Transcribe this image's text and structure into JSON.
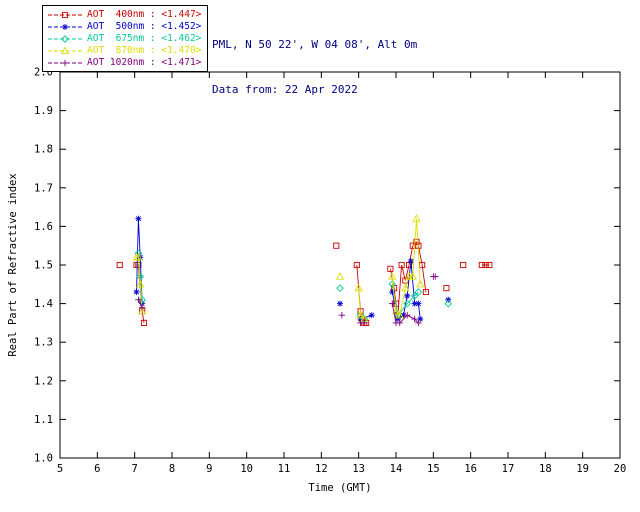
{
  "header": {
    "site_line": "PML, N 50 22', W 04 08', Alt 0m",
    "date_line": "Data from: 22 Apr 2022",
    "text_color": "#000080"
  },
  "axis_color": "#000000",
  "chart_data": {
    "type": "scatter",
    "title": "",
    "xlabel": "Time (GMT)",
    "ylabel": "Real Part of Refractive index",
    "xlim": [
      5,
      20
    ],
    "ylim": [
      1.0,
      2.0
    ],
    "xticks": [
      5,
      6,
      7,
      8,
      9,
      10,
      11,
      12,
      13,
      14,
      15,
      16,
      17,
      18,
      19,
      20
    ],
    "yticks": [
      1.0,
      1.1,
      1.2,
      1.3,
      1.4,
      1.5,
      1.6,
      1.7,
      1.8,
      1.9,
      2.0
    ],
    "grid": false,
    "legend_position": "top-left",
    "connect_max_gap_hours": 0.4,
    "series": [
      {
        "name": "AOT  400nm : <1.447>",
        "color": "#cc0000",
        "marker": "square",
        "points": [
          [
            6.6,
            1.5
          ],
          [
            7.05,
            1.5
          ],
          [
            7.1,
            1.5
          ],
          [
            7.2,
            1.38
          ],
          [
            7.25,
            1.35
          ],
          [
            12.4,
            1.55
          ],
          [
            12.95,
            1.5
          ],
          [
            13.05,
            1.38
          ],
          [
            13.1,
            1.36
          ],
          [
            13.15,
            1.35
          ],
          [
            13.2,
            1.35
          ],
          [
            13.85,
            1.49
          ],
          [
            13.95,
            1.44
          ],
          [
            14.0,
            1.4
          ],
          [
            14.05,
            1.37
          ],
          [
            14.15,
            1.5
          ],
          [
            14.25,
            1.46
          ],
          [
            14.35,
            1.5
          ],
          [
            14.45,
            1.55
          ],
          [
            14.55,
            1.56
          ],
          [
            14.6,
            1.55
          ],
          [
            14.7,
            1.5
          ],
          [
            14.8,
            1.43
          ],
          [
            15.35,
            1.44
          ],
          [
            15.8,
            1.5
          ],
          [
            16.3,
            1.5
          ],
          [
            16.4,
            1.5
          ],
          [
            16.5,
            1.5
          ]
        ]
      },
      {
        "name": "AOT  500nm : <1.452>",
        "color": "#0000cc",
        "marker": "asterisk",
        "points": [
          [
            7.05,
            1.43
          ],
          [
            7.1,
            1.62
          ],
          [
            7.15,
            1.52
          ],
          [
            7.2,
            1.4
          ],
          [
            12.5,
            1.4
          ],
          [
            13.05,
            1.36
          ],
          [
            13.35,
            1.37
          ],
          [
            13.9,
            1.43
          ],
          [
            14.05,
            1.36
          ],
          [
            14.2,
            1.37
          ],
          [
            14.3,
            1.42
          ],
          [
            14.4,
            1.51
          ],
          [
            14.5,
            1.4
          ],
          [
            14.6,
            1.4
          ],
          [
            14.65,
            1.36
          ],
          [
            15.4,
            1.41
          ]
        ]
      },
      {
        "name": "AOT  675nm : <1.462>",
        "color": "#00cc99",
        "marker": "diamond",
        "points": [
          [
            7.1,
            1.53
          ],
          [
            7.15,
            1.47
          ],
          [
            7.2,
            1.41
          ],
          [
            12.5,
            1.44
          ],
          [
            13.05,
            1.37
          ],
          [
            13.15,
            1.36
          ],
          [
            13.9,
            1.45
          ],
          [
            14.05,
            1.37
          ],
          [
            14.3,
            1.4
          ],
          [
            14.5,
            1.42
          ],
          [
            14.6,
            1.43
          ],
          [
            15.4,
            1.4
          ]
        ]
      },
      {
        "name": "AOT  870nm : <1.470>",
        "color": "#dddd00",
        "marker": "triangle",
        "points": [
          [
            7.05,
            1.52
          ],
          [
            7.1,
            1.52
          ],
          [
            7.15,
            1.45
          ],
          [
            7.2,
            1.38
          ],
          [
            12.5,
            1.47
          ],
          [
            13.0,
            1.44
          ],
          [
            13.05,
            1.37
          ],
          [
            13.15,
            1.36
          ],
          [
            13.9,
            1.47
          ],
          [
            14.0,
            1.38
          ],
          [
            14.1,
            1.37
          ],
          [
            14.25,
            1.44
          ],
          [
            14.35,
            1.47
          ],
          [
            14.45,
            1.47
          ],
          [
            14.55,
            1.62
          ],
          [
            14.65,
            1.45
          ]
        ]
      },
      {
        "name": "AOT 1020nm : <1.471>",
        "color": "#800080",
        "marker": "plus",
        "points": [
          [
            7.1,
            1.41
          ],
          [
            7.2,
            1.39
          ],
          [
            12.55,
            1.37
          ],
          [
            13.05,
            1.35
          ],
          [
            13.15,
            1.35
          ],
          [
            13.9,
            1.4
          ],
          [
            14.0,
            1.35
          ],
          [
            14.1,
            1.35
          ],
          [
            14.3,
            1.37
          ],
          [
            14.5,
            1.36
          ],
          [
            14.6,
            1.35
          ],
          [
            15.0,
            1.47
          ],
          [
            15.05,
            1.47
          ]
        ]
      }
    ]
  }
}
